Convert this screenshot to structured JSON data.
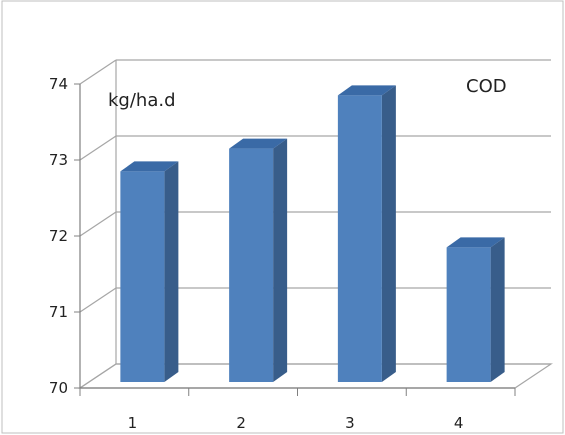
{
  "chart_data": {
    "type": "bar",
    "categories": [
      "1",
      "2",
      "3",
      "4"
    ],
    "values": [
      72.85,
      73.15,
      73.85,
      71.85
    ],
    "ylim": [
      70,
      74
    ],
    "yticks": [
      "70",
      "71",
      "72",
      "73",
      "74"
    ],
    "unit_label": "kg/ha.d",
    "series_label": "COD",
    "grid": true,
    "colors": {
      "bar_front": "#4f81bd",
      "bar_side": "#385d8a",
      "bar_top": "#3a6aa6",
      "gridline": "#a6a6a6"
    }
  }
}
